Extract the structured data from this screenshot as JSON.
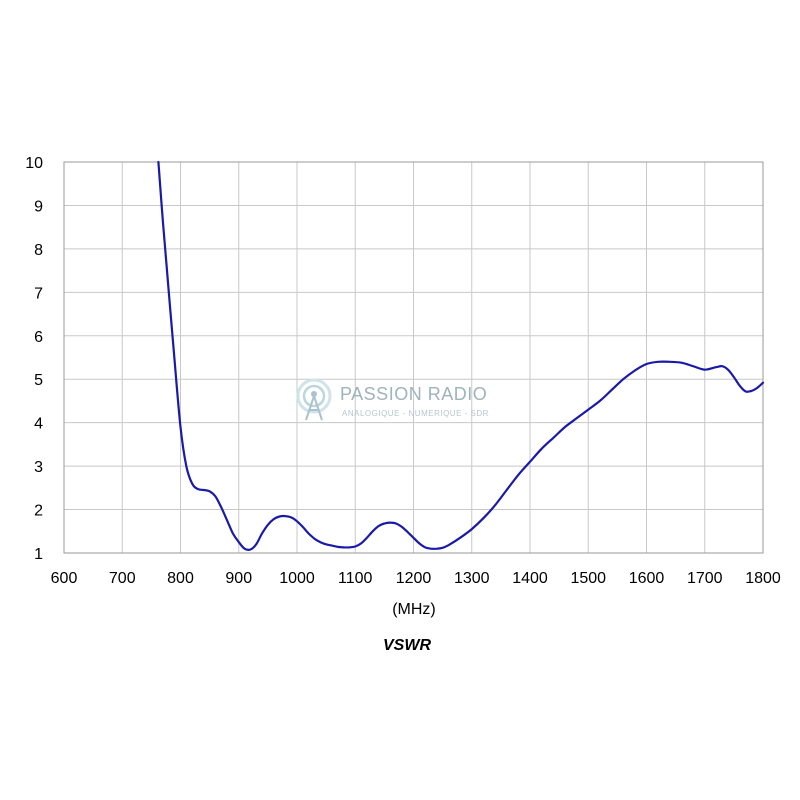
{
  "chart_data": {
    "type": "line",
    "title": "",
    "xlabel": "(MHz)",
    "ylabel": "",
    "caption": "VSWR",
    "xlim": [
      600,
      1800
    ],
    "ylim": [
      1,
      10
    ],
    "xticks": [
      600,
      700,
      800,
      900,
      1000,
      1100,
      1200,
      1300,
      1400,
      1500,
      1600,
      1700,
      1800
    ],
    "yticks": [
      1,
      2,
      3,
      4,
      5,
      6,
      7,
      8,
      9,
      10
    ],
    "grid": true,
    "legend": "none",
    "line_color": "#1a1aa8",
    "grid_color": "#c8c8c8",
    "series": [
      {
        "x": [
          762,
          770,
          780,
          790,
          800,
          810,
          820,
          830,
          840,
          850,
          860,
          870,
          880,
          890,
          900,
          910,
          920,
          930,
          940,
          950,
          960,
          970,
          980,
          990,
          1000,
          1010,
          1020,
          1030,
          1040,
          1050,
          1060,
          1070,
          1080,
          1090,
          1100,
          1110,
          1120,
          1130,
          1140,
          1150,
          1160,
          1170,
          1180,
          1190,
          1200,
          1210,
          1220,
          1230,
          1240,
          1250,
          1260,
          1280,
          1300,
          1320,
          1340,
          1360,
          1380,
          1400,
          1420,
          1440,
          1460,
          1480,
          1500,
          1520,
          1540,
          1560,
          1580,
          1600,
          1620,
          1640,
          1660,
          1680,
          1700,
          1720,
          1730,
          1740,
          1750,
          1760,
          1770,
          1780,
          1790,
          1800
        ],
        "y": [
          10.0,
          8.6,
          7.0,
          5.4,
          3.9,
          3.0,
          2.6,
          2.47,
          2.45,
          2.42,
          2.3,
          2.05,
          1.75,
          1.45,
          1.25,
          1.1,
          1.08,
          1.2,
          1.45,
          1.65,
          1.78,
          1.84,
          1.85,
          1.82,
          1.73,
          1.6,
          1.45,
          1.33,
          1.25,
          1.2,
          1.17,
          1.14,
          1.13,
          1.13,
          1.15,
          1.22,
          1.35,
          1.5,
          1.62,
          1.68,
          1.7,
          1.68,
          1.6,
          1.48,
          1.35,
          1.22,
          1.13,
          1.1,
          1.1,
          1.12,
          1.18,
          1.35,
          1.55,
          1.8,
          2.1,
          2.45,
          2.8,
          3.1,
          3.4,
          3.65,
          3.9,
          4.1,
          4.3,
          4.5,
          4.75,
          5.0,
          5.2,
          5.35,
          5.4,
          5.4,
          5.38,
          5.3,
          5.22,
          5.28,
          5.3,
          5.22,
          5.05,
          4.85,
          4.72,
          4.73,
          4.8,
          4.92
        ]
      }
    ]
  },
  "watermark": {
    "title": "PASSION RADIO",
    "subtitle": "ANALOGIQUE - NUMERIQUE - SDR",
    "icon": "radio-tower-icon"
  }
}
